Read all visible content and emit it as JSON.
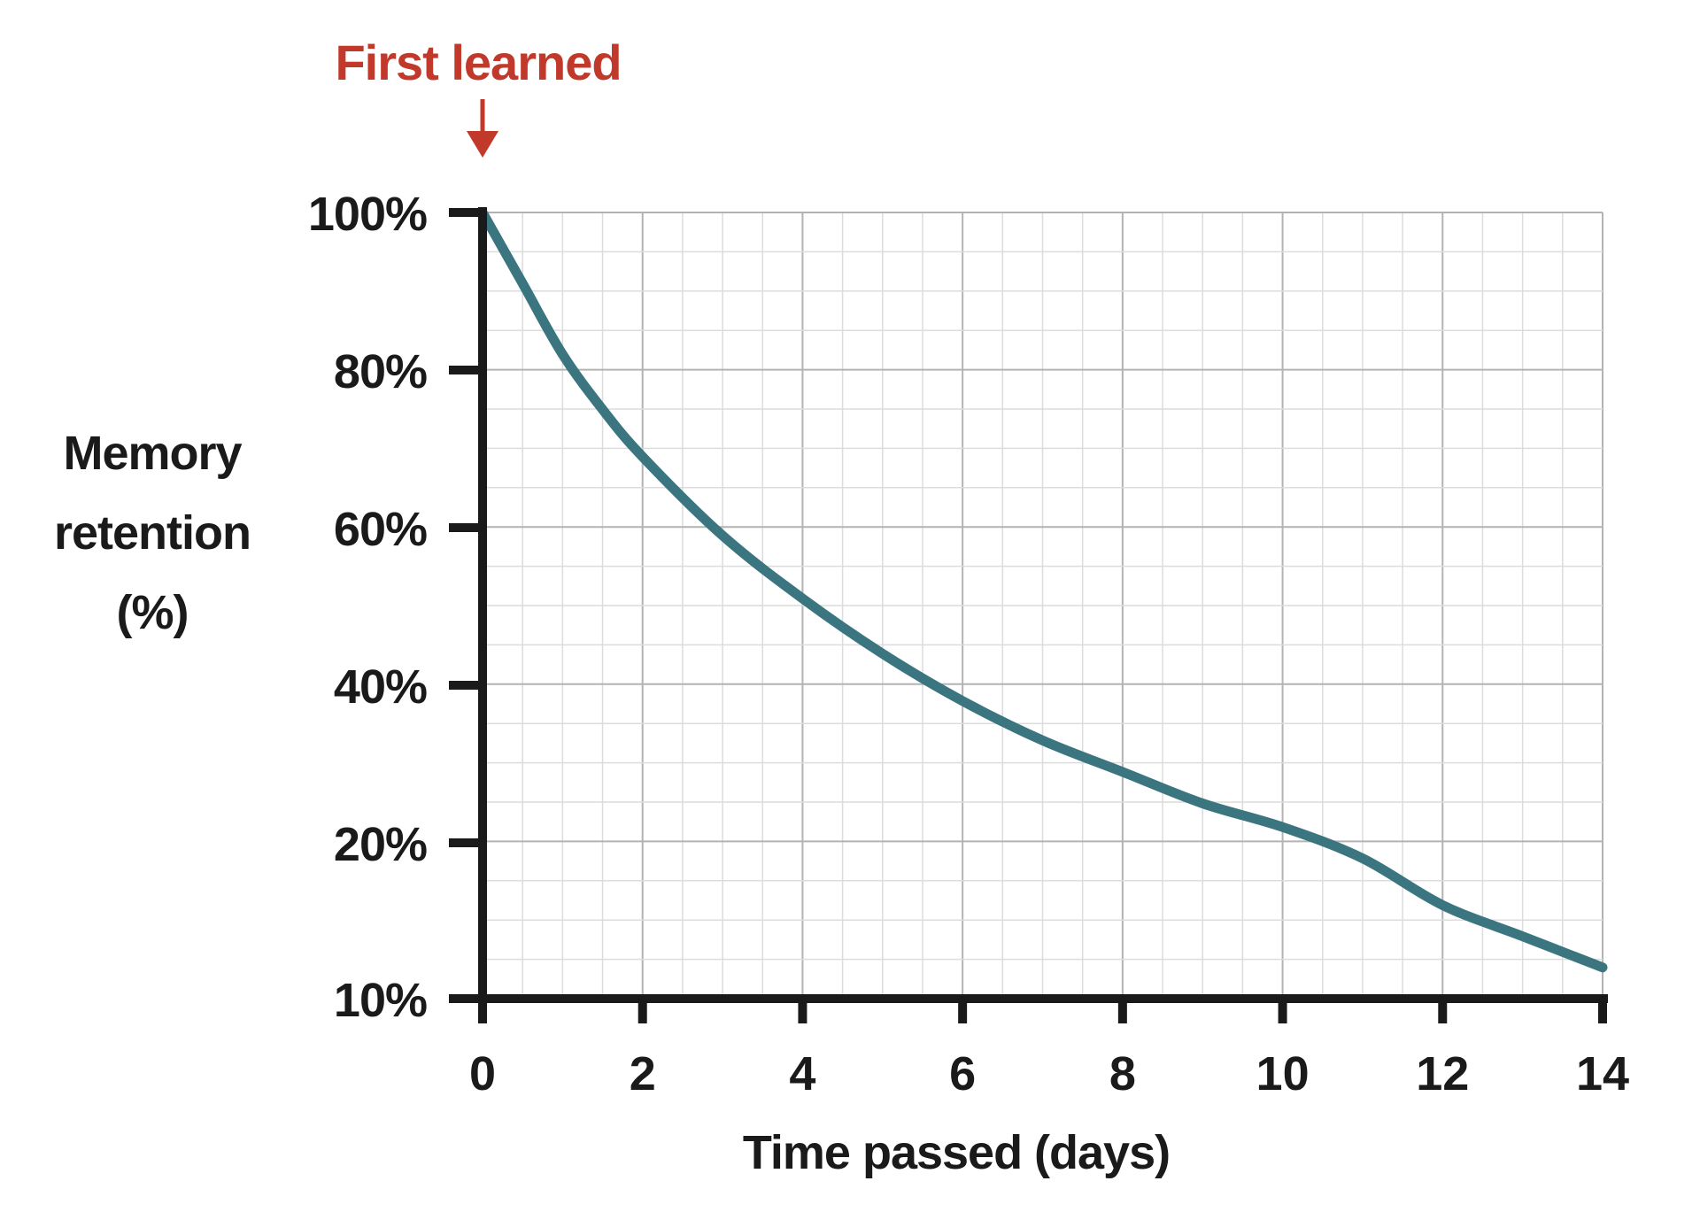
{
  "chart_data": {
    "type": "line",
    "title": "",
    "xlabel": "Time passed (days)",
    "ylabel_lines": [
      "Memory",
      "retention",
      "(%)"
    ],
    "xlim": [
      0,
      14
    ],
    "ylim": [
      10,
      100
    ],
    "x_ticks": [
      "0",
      "2",
      "4",
      "6",
      "8",
      "10",
      "12",
      "14"
    ],
    "y_ticks": [
      "100%",
      "80%",
      "60%",
      "40%",
      "20%",
      "10%"
    ],
    "grid": true,
    "annotation": {
      "text": "First learned",
      "x": 0,
      "arrow": "down",
      "color": "#c0392b"
    },
    "series": [
      {
        "color": "#3a7580",
        "x": [
          0,
          0.5,
          1,
          1.5,
          2,
          3,
          4,
          5,
          6,
          7,
          8,
          9,
          10,
          11,
          12,
          13,
          14
        ],
        "y": [
          100,
          91,
          82,
          75,
          69,
          59,
          51,
          44,
          38,
          33,
          29,
          25,
          22,
          19,
          16,
          14,
          12
        ]
      }
    ]
  },
  "colors": {
    "curve": "#3a7580",
    "axis": "#1a1a1a",
    "grid_major": "#b3b3b3",
    "grid_minor": "#dcdcdc",
    "annotation": "#c0392b"
  }
}
